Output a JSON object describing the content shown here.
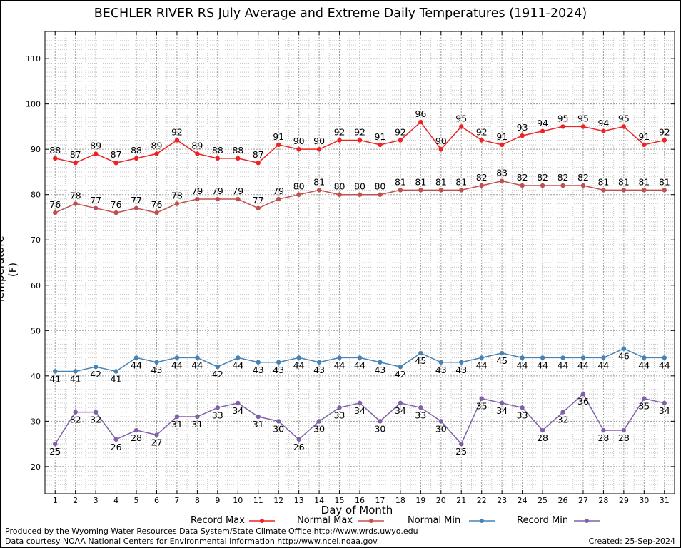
{
  "chart_data": {
    "type": "line",
    "title": "BECHLER RIVER RS July Average and Extreme Daily Temperatures (1911-2024)",
    "xlabel": "Day of Month",
    "ylabel": "Temperature (F)",
    "x": [
      1,
      2,
      3,
      4,
      5,
      6,
      7,
      8,
      9,
      10,
      11,
      12,
      13,
      14,
      15,
      16,
      17,
      18,
      19,
      20,
      21,
      22,
      23,
      24,
      25,
      26,
      27,
      28,
      29,
      30,
      31
    ],
    "xlim": [
      0.5,
      31.5
    ],
    "ylim": [
      14,
      116
    ],
    "yticks": [
      20,
      30,
      40,
      50,
      60,
      70,
      80,
      90,
      100,
      110
    ],
    "grid": true,
    "legend_position": "bottom",
    "series": [
      {
        "name": "Record Max",
        "color": "#ee2222",
        "label_side": "above",
        "values": [
          88,
          87,
          89,
          87,
          88,
          89,
          92,
          89,
          88,
          88,
          87,
          91,
          90,
          90,
          92,
          92,
          91,
          92,
          96,
          90,
          95,
          92,
          91,
          93,
          94,
          95,
          95,
          94,
          95,
          91,
          92
        ]
      },
      {
        "name": "Normal Max",
        "color": "#c05050",
        "label_side": "above",
        "values": [
          76,
          78,
          77,
          76,
          77,
          76,
          78,
          79,
          79,
          79,
          77,
          79,
          80,
          81,
          80,
          80,
          80,
          81,
          81,
          81,
          81,
          82,
          83,
          82,
          82,
          82,
          82,
          81,
          81,
          81,
          81
        ]
      },
      {
        "name": "Normal Min",
        "color": "#4682b4",
        "label_side": "below",
        "values": [
          41,
          41,
          42,
          41,
          44,
          43,
          44,
          44,
          42,
          44,
          43,
          43,
          44,
          43,
          44,
          44,
          43,
          42,
          45,
          43,
          43,
          44,
          45,
          44,
          44,
          44,
          44,
          44,
          46,
          44,
          44
        ]
      },
      {
        "name": "Record Min",
        "color": "#8060a8",
        "label_side": "below",
        "values": [
          25,
          32,
          32,
          26,
          28,
          27,
          31,
          31,
          33,
          34,
          31,
          30,
          26,
          30,
          33,
          34,
          30,
          34,
          33,
          30,
          25,
          35,
          34,
          33,
          28,
          32,
          36,
          28,
          28,
          35,
          34
        ]
      }
    ]
  },
  "footer": {
    "produced": "Produced by the Wyoming Water Resources Data System/State Climate Office http://www.wrds.uwyo.edu",
    "courtesy": "Data courtesy NOAA National Centers for Environmental Information http://www.ncei.noaa.gov",
    "created": "Created:  25-Sep-2024"
  }
}
